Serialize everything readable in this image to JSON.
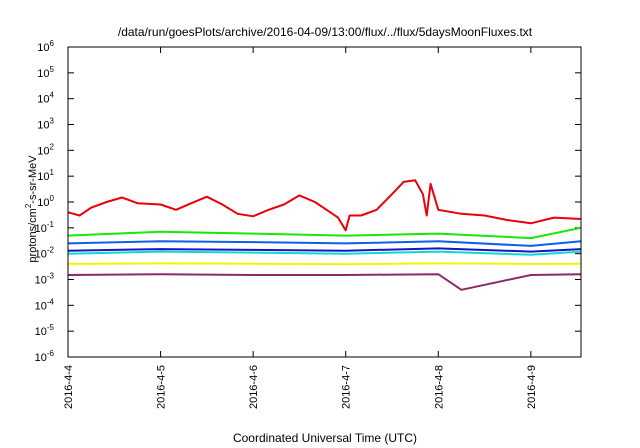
{
  "chart_data": {
    "type": "line",
    "title": "/data/run/goesPlots/archive/2016-04-09/13:00/flux/../flux/5daysMoonFluxes.txt",
    "xlabel": "Coordinated Universal Time (UTC)",
    "ylabel_main": "protons/cm",
    "ylabel_sup": "2",
    "ylabel_rest": "-s-sr-MeV",
    "x_domain": [
      "2016-04-04T00:00",
      "2016-04-09T13:00"
    ],
    "x_ticks": [
      {
        "date": "2016-04-04",
        "label": "2016-4-4"
      },
      {
        "date": "2016-04-05",
        "label": "2016-4-5"
      },
      {
        "date": "2016-04-06",
        "label": "2016-4-6"
      },
      {
        "date": "2016-04-07",
        "label": "2016-4-7"
      },
      {
        "date": "2016-04-08",
        "label": "2016-4-8"
      },
      {
        "date": "2016-04-09",
        "label": "2016-4-9"
      }
    ],
    "y_scale": "log",
    "ylim": [
      1e-06,
      1000000.0
    ],
    "y_ticks": [
      {
        "value": 1000000.0,
        "base": "10",
        "exp": "6"
      },
      {
        "value": 100000.0,
        "base": "10",
        "exp": "5"
      },
      {
        "value": 10000.0,
        "base": "10",
        "exp": "4"
      },
      {
        "value": 1000.0,
        "base": "10",
        "exp": "3"
      },
      {
        "value": 100.0,
        "base": "10",
        "exp": "2"
      },
      {
        "value": 10.0,
        "base": "10",
        "exp": "1"
      },
      {
        "value": 1.0,
        "base": "10",
        "exp": "0"
      },
      {
        "value": 0.1,
        "base": "10",
        "exp": "-1"
      },
      {
        "value": 0.01,
        "base": "10",
        "exp": "-2"
      },
      {
        "value": 0.001,
        "base": "10",
        "exp": "-3"
      },
      {
        "value": 0.0001,
        "base": "10",
        "exp": "-4"
      },
      {
        "value": 1e-05,
        "base": "10",
        "exp": "-5"
      },
      {
        "value": 1e-06,
        "base": "10",
        "exp": "-6"
      }
    ],
    "grid": false,
    "legend": "none",
    "series": [
      {
        "color": "#e8000b",
        "x": [
          "2016-04-04T00:00",
          "2016-04-04T03:00",
          "2016-04-04T06:00",
          "2016-04-04T10:00",
          "2016-04-04T14:00",
          "2016-04-04T18:00",
          "2016-04-05T00:00",
          "2016-04-05T04:00",
          "2016-04-05T08:00",
          "2016-04-05T12:00",
          "2016-04-05T16:00",
          "2016-04-05T20:00",
          "2016-04-06T00:00",
          "2016-04-06T04:00",
          "2016-04-06T08:00",
          "2016-04-06T12:00",
          "2016-04-06T16:00",
          "2016-04-06T20:00",
          "2016-04-06T22:00",
          "2016-04-07T00:00",
          "2016-04-07T01:00",
          "2016-04-07T04:00",
          "2016-04-07T08:00",
          "2016-04-07T12:00",
          "2016-04-07T15:00",
          "2016-04-07T18:00",
          "2016-04-07T20:00",
          "2016-04-07T21:00",
          "2016-04-07T22:00",
          "2016-04-08T00:00",
          "2016-04-08T06:00",
          "2016-04-08T12:00",
          "2016-04-08T18:00",
          "2016-04-09T00:00",
          "2016-04-09T06:00",
          "2016-04-09T13:00"
        ],
        "values": [
          0.4,
          0.3,
          0.6,
          1.0,
          1.5,
          0.9,
          0.8,
          0.5,
          0.9,
          1.6,
          0.8,
          0.35,
          0.28,
          0.5,
          0.8,
          1.8,
          1.0,
          0.4,
          0.25,
          0.08,
          0.3,
          0.3,
          0.5,
          2.0,
          6.0,
          7.0,
          2.0,
          0.3,
          5.0,
          0.5,
          0.35,
          0.3,
          0.2,
          0.15,
          0.25,
          0.22
        ]
      },
      {
        "color": "#17e80a",
        "x": [
          "2016-04-04T00:00",
          "2016-04-05T00:00",
          "2016-04-06T00:00",
          "2016-04-07T00:00",
          "2016-04-08T00:00",
          "2016-04-09T00:00",
          "2016-04-09T13:00"
        ],
        "values": [
          0.05,
          0.07,
          0.06,
          0.05,
          0.06,
          0.04,
          0.1
        ]
      },
      {
        "color": "#0a5ff0",
        "x": [
          "2016-04-04T00:00",
          "2016-04-05T00:00",
          "2016-04-06T00:00",
          "2016-04-07T00:00",
          "2016-04-08T00:00",
          "2016-04-09T00:00",
          "2016-04-09T13:00"
        ],
        "values": [
          0.025,
          0.03,
          0.028,
          0.025,
          0.03,
          0.02,
          0.03
        ]
      },
      {
        "color": "#12d8d2",
        "x": [
          "2016-04-04T00:00",
          "2016-04-05T00:00",
          "2016-04-06T00:00",
          "2016-04-07T00:00",
          "2016-04-08T00:00",
          "2016-04-09T00:00",
          "2016-04-09T13:00"
        ],
        "values": [
          0.01,
          0.012,
          0.011,
          0.01,
          0.012,
          0.009,
          0.012
        ]
      },
      {
        "color": "#1414c8",
        "x": [
          "2016-04-04T00:00",
          "2016-04-05T00:00",
          "2016-04-06T00:00",
          "2016-04-07T00:00",
          "2016-04-08T00:00",
          "2016-04-09T00:00",
          "2016-04-09T13:00"
        ],
        "values": [
          0.013,
          0.015,
          0.014,
          0.013,
          0.016,
          0.012,
          0.015
        ]
      },
      {
        "color": "#f5f500",
        "x": [
          "2016-04-04T00:00",
          "2016-04-05T00:00",
          "2016-04-06T00:00",
          "2016-04-07T00:00",
          "2016-04-08T00:00",
          "2016-04-09T00:00",
          "2016-04-09T13:00"
        ],
        "values": [
          0.004,
          0.0042,
          0.0041,
          0.0039,
          0.0042,
          0.004,
          0.0041
        ]
      },
      {
        "color": "#8b2a6b",
        "x": [
          "2016-04-04T00:00",
          "2016-04-05T00:00",
          "2016-04-06T00:00",
          "2016-04-07T00:00",
          "2016-04-08T00:00",
          "2016-04-08T06:00",
          "2016-04-09T00:00",
          "2016-04-09T13:00"
        ],
        "values": [
          0.0015,
          0.0016,
          0.0015,
          0.0015,
          0.0016,
          0.0004,
          0.0015,
          0.0016
        ]
      }
    ]
  }
}
